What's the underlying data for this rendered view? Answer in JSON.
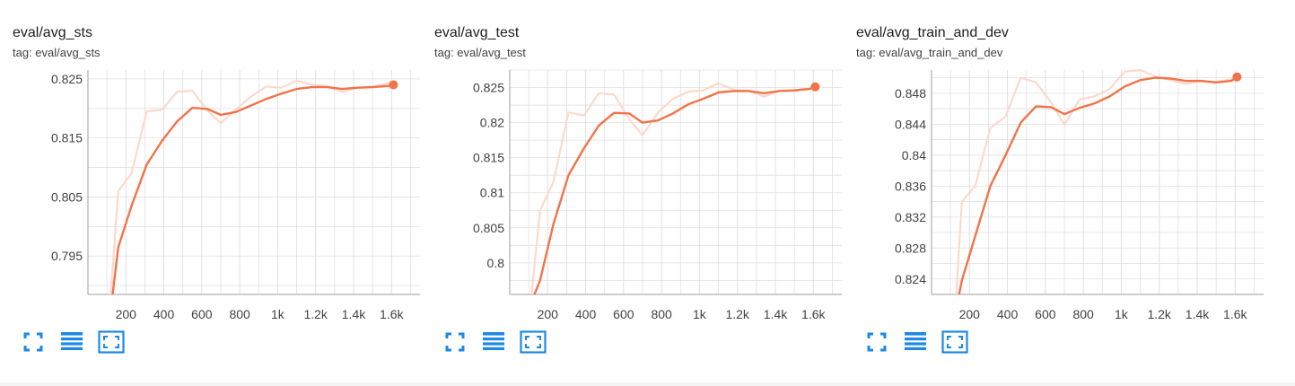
{
  "colors": {
    "line": "#f2734a",
    "raw": "#fcd9cc",
    "grid": "#e0e0e0",
    "axis": "#9e9e9e",
    "tick_label": "#424242",
    "icon": "#1e88e5"
  },
  "icons": [
    "fullscreen-icon",
    "data-table-icon",
    "fit-domain-icon"
  ],
  "cards": [
    {
      "title": "eval/avg_sts",
      "tag": "tag: eval/avg_sts"
    },
    {
      "title": "eval/avg_test",
      "tag": "tag: eval/avg_test"
    },
    {
      "title": "eval/avg_train_and_dev",
      "tag": "tag: eval/avg_train_and_dev"
    }
  ],
  "chart_data": [
    {
      "type": "line",
      "title": "eval/avg_sts",
      "xlim": [
        0,
        1750
      ],
      "ylim": [
        0.7885,
        0.8265
      ],
      "xticks": [
        200,
        400,
        600,
        800,
        1000,
        1200,
        1400,
        1600
      ],
      "xtick_labels": [
        "200",
        "400",
        "600",
        "800",
        "1k",
        "1.2k",
        "1.4k",
        "1.6k"
      ],
      "yticks": [
        0.795,
        0.805,
        0.815,
        0.825
      ],
      "ytick_labels": [
        "0.795",
        "0.805",
        "0.815",
        "0.825"
      ],
      "grid": true,
      "series": [
        {
          "role": "smoothed",
          "x": [
            130,
            160,
            230,
            310,
            390,
            470,
            550,
            630,
            700,
            780,
            860,
            940,
            1020,
            1100,
            1180,
            1260,
            1340,
            1420,
            1500,
            1580,
            1610
          ],
          "y": [
            0.7885,
            0.7965,
            0.8035,
            0.8105,
            0.8145,
            0.8178,
            0.8201,
            0.8199,
            0.8189,
            0.8194,
            0.8205,
            0.8216,
            0.8225,
            0.8233,
            0.8236,
            0.8236,
            0.8233,
            0.8235,
            0.8236,
            0.8238,
            0.824
          ]
        },
        {
          "role": "raw",
          "x": [
            120,
            160,
            230,
            310,
            390,
            470,
            550,
            630,
            700,
            780,
            860,
            940,
            1020,
            1100,
            1180,
            1260,
            1340,
            1420,
            1500,
            1580,
            1610
          ],
          "y": [
            0.7885,
            0.806,
            0.809,
            0.8195,
            0.8198,
            0.8228,
            0.823,
            0.8196,
            0.8175,
            0.8198,
            0.822,
            0.8237,
            0.8235,
            0.8247,
            0.824,
            0.8238,
            0.8228,
            0.8235,
            0.8237,
            0.8242,
            0.8246
          ]
        }
      ]
    },
    {
      "type": "line",
      "title": "eval/avg_test",
      "xlim": [
        0,
        1750
      ],
      "ylim": [
        0.7955,
        0.8275
      ],
      "xticks": [
        200,
        400,
        600,
        800,
        1000,
        1200,
        1400,
        1600
      ],
      "xtick_labels": [
        "200",
        "400",
        "600",
        "800",
        "1k",
        "1.2k",
        "1.4k",
        "1.6k"
      ],
      "yticks": [
        0.8,
        0.805,
        0.81,
        0.815,
        0.82,
        0.825
      ],
      "ytick_labels": [
        "0.8",
        "0.805",
        "0.81",
        "0.815",
        "0.82",
        "0.825"
      ],
      "grid": true,
      "series": [
        {
          "role": "smoothed",
          "x": [
            130,
            160,
            230,
            310,
            390,
            470,
            550,
            630,
            700,
            780,
            860,
            940,
            1020,
            1100,
            1180,
            1260,
            1340,
            1420,
            1500,
            1580,
            1610
          ],
          "y": [
            0.7955,
            0.7975,
            0.8055,
            0.8125,
            0.8163,
            0.8196,
            0.8214,
            0.8213,
            0.82,
            0.8203,
            0.8213,
            0.8226,
            0.8234,
            0.8243,
            0.8245,
            0.8245,
            0.8242,
            0.8245,
            0.8246,
            0.8248,
            0.8251
          ]
        },
        {
          "role": "raw",
          "x": [
            115,
            160,
            230,
            310,
            390,
            470,
            550,
            630,
            700,
            780,
            860,
            940,
            1020,
            1100,
            1180,
            1260,
            1340,
            1420,
            1500,
            1580,
            1610
          ],
          "y": [
            0.7955,
            0.8075,
            0.8115,
            0.8215,
            0.821,
            0.8242,
            0.824,
            0.8205,
            0.8182,
            0.8214,
            0.8234,
            0.8244,
            0.8246,
            0.8256,
            0.8247,
            0.8245,
            0.8237,
            0.8245,
            0.8246,
            0.8249,
            0.8252
          ]
        }
      ]
    },
    {
      "type": "line",
      "title": "eval/avg_train_and_dev",
      "xlim": [
        0,
        1750
      ],
      "ylim": [
        0.822,
        0.851
      ],
      "xticks": [
        200,
        400,
        600,
        800,
        1000,
        1200,
        1400,
        1600
      ],
      "xtick_labels": [
        "200",
        "400",
        "600",
        "800",
        "1k",
        "1.2k",
        "1.4k",
        "1.6k"
      ],
      "yticks": [
        0.824,
        0.828,
        0.832,
        0.836,
        0.84,
        0.844,
        0.848
      ],
      "ytick_labels": [
        "0.824",
        "0.828",
        "0.832",
        "0.836",
        "0.84",
        "0.844",
        "0.848"
      ],
      "grid": true,
      "series": [
        {
          "role": "smoothed",
          "x": [
            145,
            160,
            230,
            310,
            390,
            470,
            550,
            630,
            700,
            780,
            860,
            940,
            1020,
            1100,
            1180,
            1260,
            1340,
            1420,
            1500,
            1580,
            1610
          ],
          "y": [
            0.822,
            0.8238,
            0.8295,
            0.836,
            0.84,
            0.8442,
            0.8463,
            0.8462,
            0.8453,
            0.8461,
            0.8467,
            0.8476,
            0.8489,
            0.8497,
            0.85,
            0.8499,
            0.8496,
            0.8496,
            0.8494,
            0.8496,
            0.8501
          ]
        },
        {
          "role": "raw",
          "x": [
            130,
            160,
            230,
            310,
            390,
            470,
            550,
            630,
            700,
            780,
            860,
            940,
            1020,
            1100,
            1180,
            1260,
            1340,
            1420,
            1500,
            1580,
            1610
          ],
          "y": [
            0.822,
            0.834,
            0.836,
            0.8435,
            0.845,
            0.85,
            0.8494,
            0.8468,
            0.8439,
            0.8472,
            0.8476,
            0.8486,
            0.8508,
            0.851,
            0.8502,
            0.8497,
            0.8492,
            0.8495,
            0.8495,
            0.8498,
            0.8502
          ]
        }
      ]
    }
  ]
}
